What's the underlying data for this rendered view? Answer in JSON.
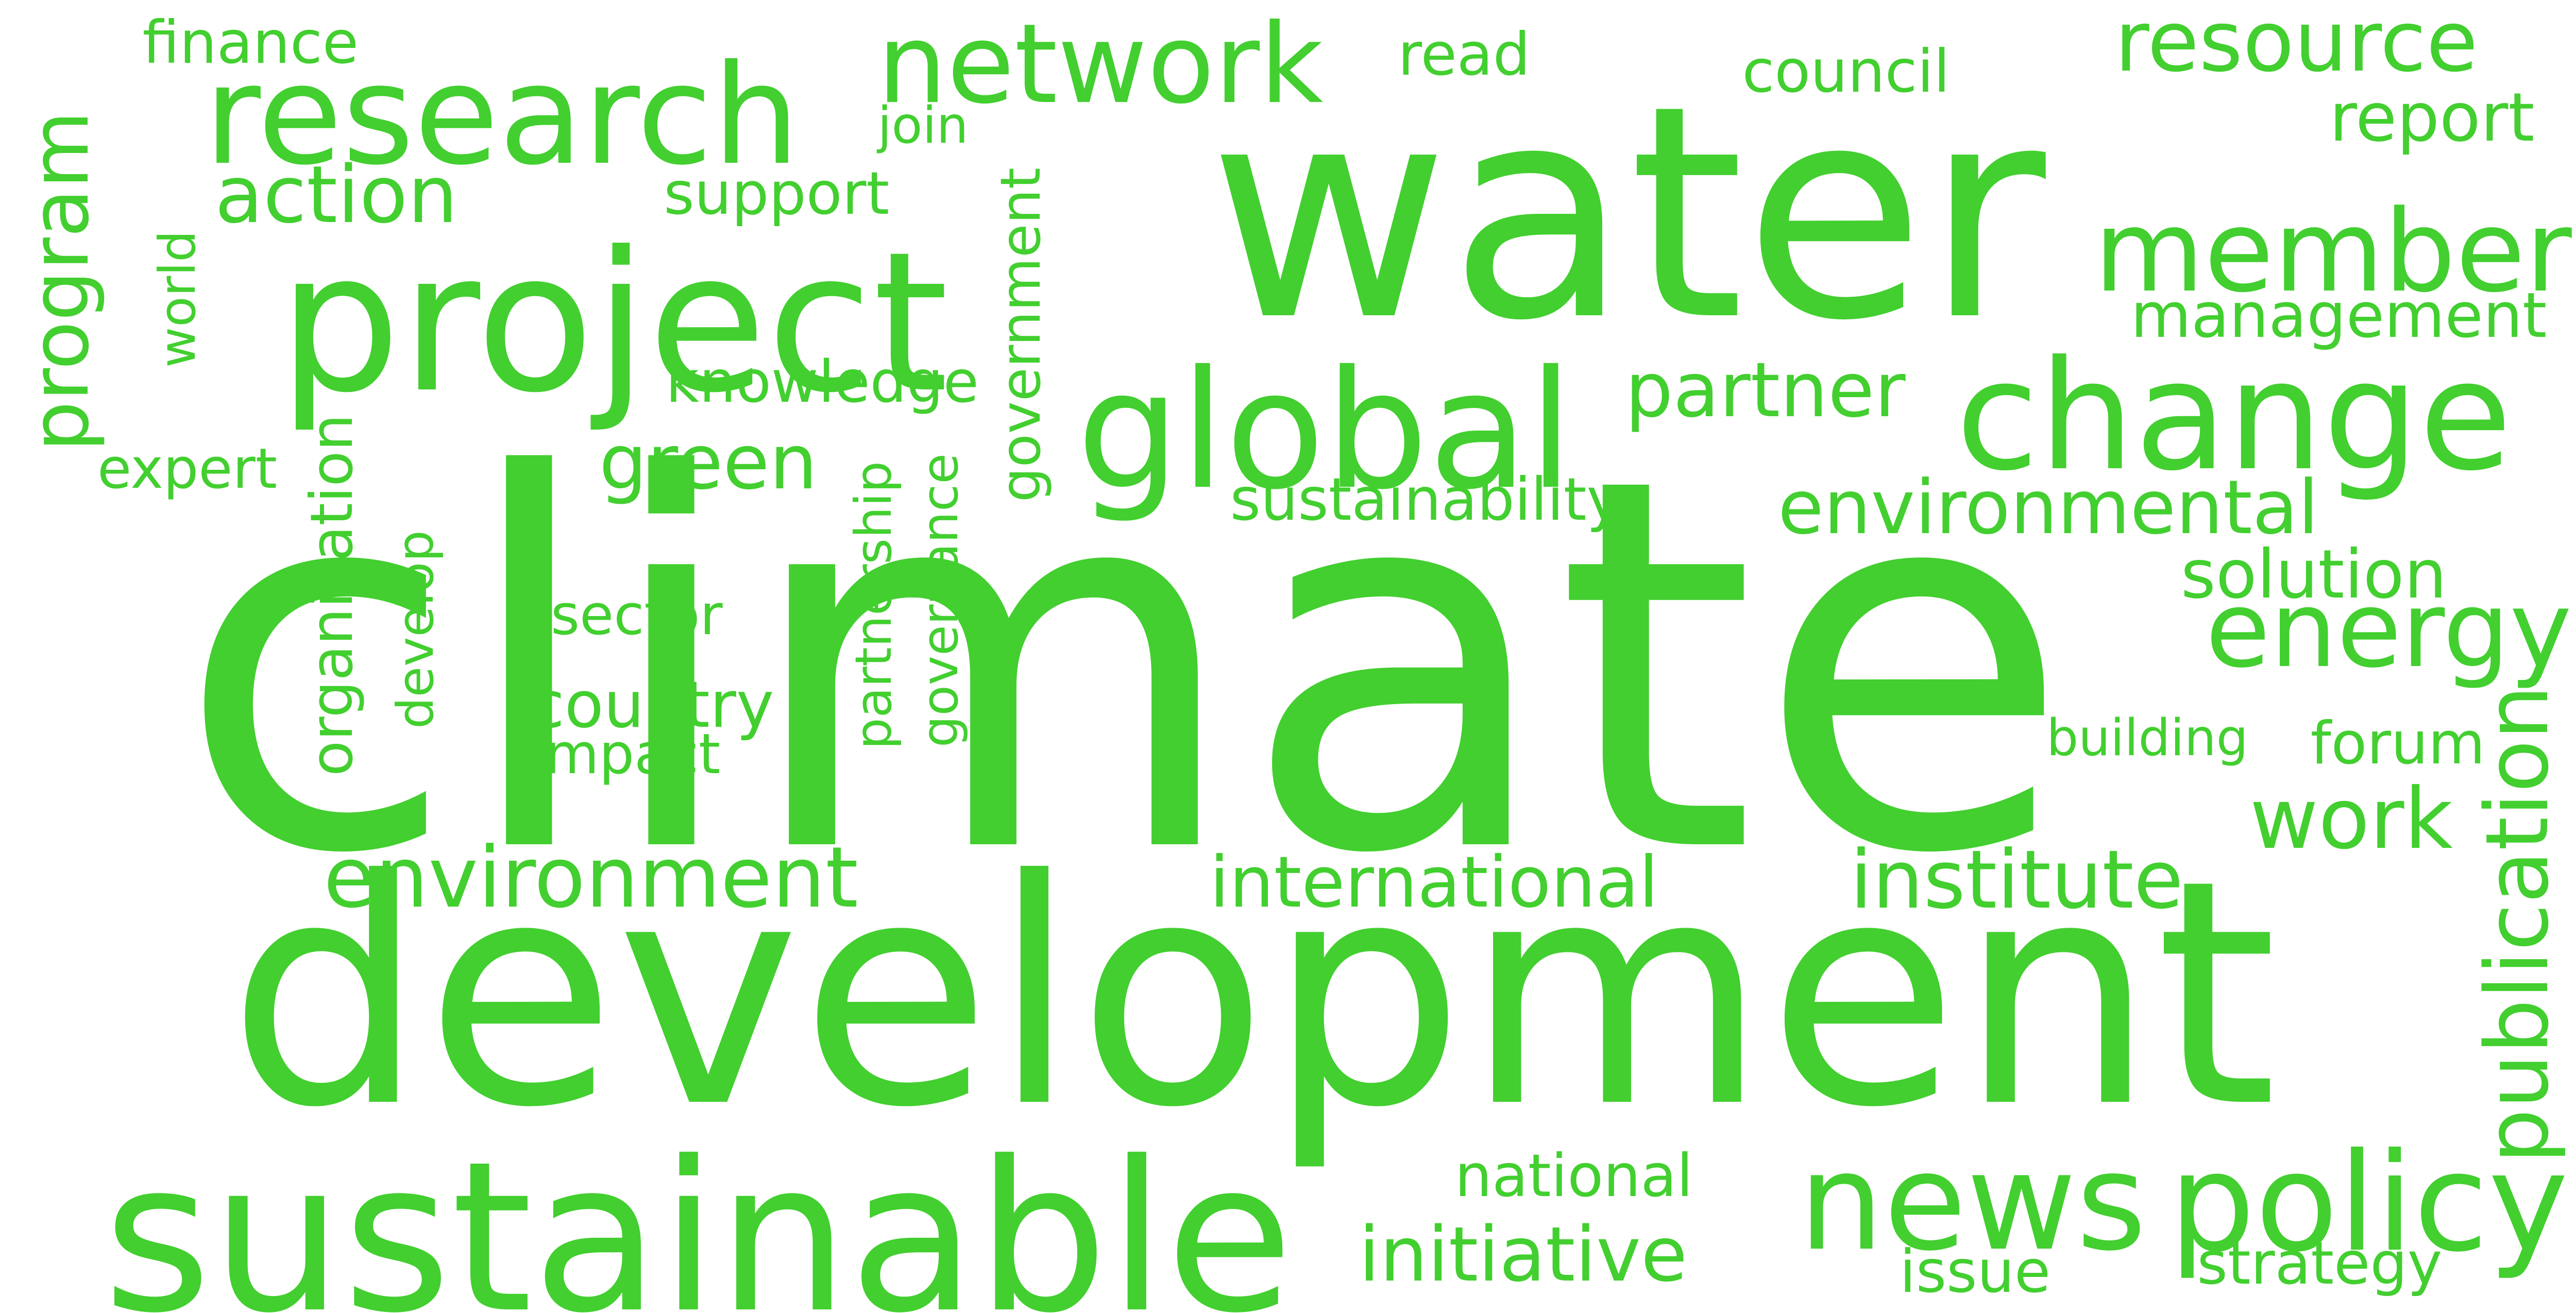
{
  "cloud": {
    "color": "#42cf2f",
    "background": "#ffffff",
    "words": [
      {
        "text": "climate",
        "vertical": false
      },
      {
        "text": "development",
        "vertical": false
      },
      {
        "text": "water",
        "vertical": false
      },
      {
        "text": "sustainable",
        "vertical": false
      },
      {
        "text": "project",
        "vertical": false
      },
      {
        "text": "research",
        "vertical": false
      },
      {
        "text": "change",
        "vertical": false
      },
      {
        "text": "global",
        "vertical": false
      },
      {
        "text": "member",
        "vertical": false
      },
      {
        "text": "network",
        "vertical": false
      },
      {
        "text": "news",
        "vertical": false
      },
      {
        "text": "policy",
        "vertical": false
      },
      {
        "text": "resource",
        "vertical": false
      },
      {
        "text": "program",
        "vertical": true
      },
      {
        "text": "energy",
        "vertical": false
      },
      {
        "text": "environment",
        "vertical": false
      },
      {
        "text": "institute",
        "vertical": false
      },
      {
        "text": "international",
        "vertical": false
      },
      {
        "text": "initiative",
        "vertical": false
      },
      {
        "text": "work",
        "vertical": false
      },
      {
        "text": "action",
        "vertical": false
      },
      {
        "text": "environmental",
        "vertical": false
      },
      {
        "text": "partner",
        "vertical": false
      },
      {
        "text": "management",
        "vertical": false
      },
      {
        "text": "report",
        "vertical": false
      },
      {
        "text": "world",
        "vertical": true
      },
      {
        "text": "organization",
        "vertical": true
      },
      {
        "text": "publication",
        "vertical": true
      },
      {
        "text": "green",
        "vertical": false
      },
      {
        "text": "sustainability",
        "vertical": false
      },
      {
        "text": "solution",
        "vertical": false
      },
      {
        "text": "country",
        "vertical": false
      },
      {
        "text": "knowledge",
        "vertical": false
      },
      {
        "text": "support",
        "vertical": false
      },
      {
        "text": "national",
        "vertical": false
      },
      {
        "text": "strategy",
        "vertical": false
      },
      {
        "text": "council",
        "vertical": false
      },
      {
        "text": "finance",
        "vertical": false
      },
      {
        "text": "read",
        "vertical": false
      },
      {
        "text": "join",
        "vertical": false
      },
      {
        "text": "expert",
        "vertical": false
      },
      {
        "text": "sector",
        "vertical": false
      },
      {
        "text": "impact",
        "vertical": false
      },
      {
        "text": "building",
        "vertical": false
      },
      {
        "text": "forum",
        "vertical": false
      },
      {
        "text": "issue",
        "vertical": false
      },
      {
        "text": "government",
        "vertical": true
      },
      {
        "text": "governance",
        "vertical": true
      },
      {
        "text": "partnership",
        "vertical": true
      },
      {
        "text": "develop",
        "vertical": true
      }
    ]
  }
}
